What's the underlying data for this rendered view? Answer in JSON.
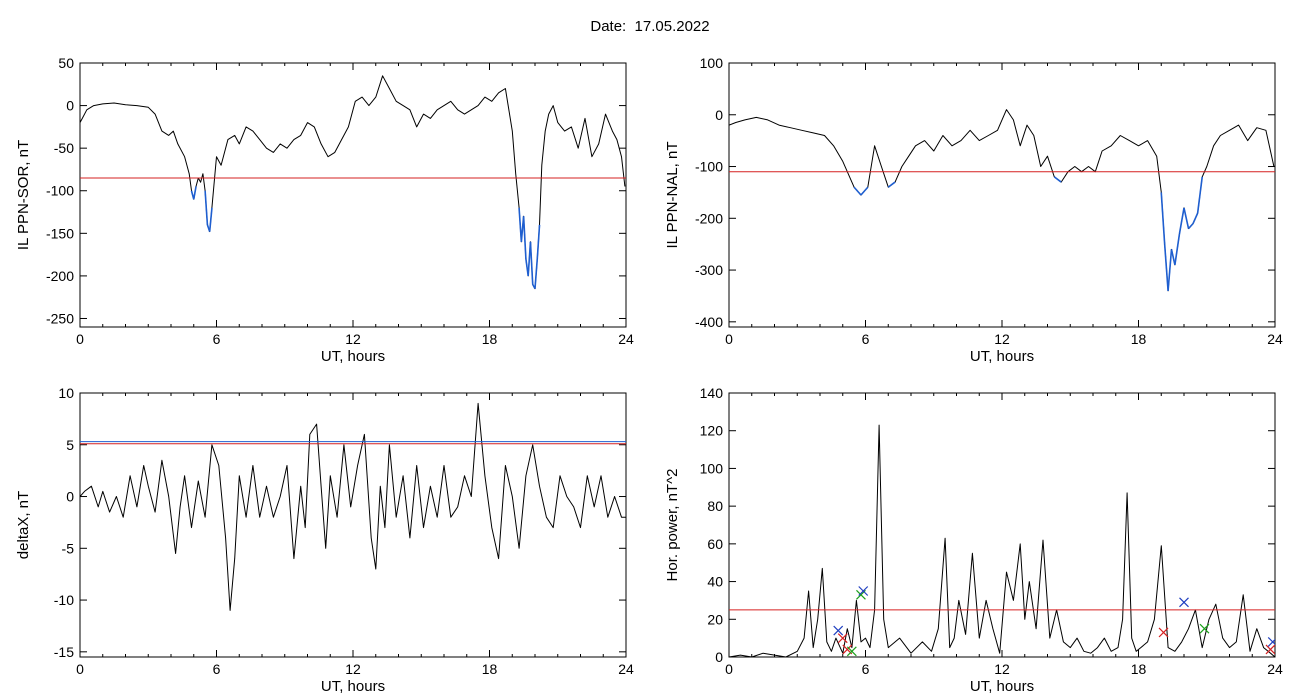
{
  "title": "Date:  17.05.2022",
  "chart_data": [
    {
      "type": "line",
      "xlabel": "UT, hours",
      "ylabel": "IL PPN-SOR, nT",
      "xlim": [
        0,
        24
      ],
      "ylim": [
        -260,
        50
      ],
      "xticks": [
        0,
        6,
        12,
        18,
        24
      ],
      "yticks": [
        50,
        0,
        -50,
        -100,
        -150,
        -200,
        -250
      ],
      "threshold_lines": [
        {
          "value": -85,
          "color": "#d62020"
        }
      ],
      "below_threshold_color": "#1f5fd0",
      "series": [
        {
          "color": "#000000",
          "x": [
            0,
            0.1,
            0.3,
            0.6,
            1.0,
            1.5,
            2.0,
            2.5,
            3.0,
            3.3,
            3.6,
            3.9,
            4.1,
            4.3,
            4.6,
            4.8,
            4.9,
            5.0,
            5.1,
            5.2,
            5.3,
            5.4,
            5.5,
            5.6,
            5.7,
            5.8,
            6.0,
            6.2,
            6.5,
            6.8,
            7.0,
            7.3,
            7.6,
            7.9,
            8.2,
            8.5,
            8.8,
            9.1,
            9.4,
            9.7,
            10.0,
            10.3,
            10.6,
            10.9,
            11.2,
            11.5,
            11.8,
            12.1,
            12.4,
            12.7,
            13.0,
            13.3,
            13.6,
            13.9,
            14.2,
            14.5,
            14.8,
            15.1,
            15.4,
            15.7,
            16.0,
            16.3,
            16.6,
            16.9,
            17.2,
            17.5,
            17.8,
            18.1,
            18.4,
            18.7,
            19.0,
            19.15,
            19.3,
            19.4,
            19.5,
            19.6,
            19.7,
            19.8,
            19.9,
            20.0,
            20.1,
            20.2,
            20.3,
            20.45,
            20.6,
            20.8,
            21.0,
            21.3,
            21.6,
            21.9,
            22.2,
            22.5,
            22.8,
            23.1,
            23.4,
            23.6,
            23.8,
            23.95
          ],
          "values": [
            -20,
            -15,
            -5,
            0,
            2,
            3,
            1,
            0,
            -2,
            -10,
            -30,
            -35,
            -30,
            -45,
            -60,
            -80,
            -100,
            -110,
            -95,
            -85,
            -90,
            -80,
            -100,
            -140,
            -148,
            -120,
            -60,
            -70,
            -40,
            -35,
            -45,
            -25,
            -30,
            -40,
            -50,
            -55,
            -45,
            -50,
            -40,
            -35,
            -20,
            -25,
            -45,
            -60,
            -55,
            -40,
            -25,
            5,
            10,
            0,
            10,
            35,
            20,
            5,
            0,
            -5,
            -25,
            -10,
            -15,
            -5,
            0,
            5,
            -5,
            -10,
            -5,
            0,
            10,
            5,
            15,
            20,
            -30,
            -80,
            -120,
            -160,
            -130,
            -180,
            -200,
            -160,
            -210,
            -215,
            -180,
            -140,
            -70,
            -30,
            -10,
            0,
            -20,
            -30,
            -25,
            -50,
            -15,
            -60,
            -45,
            -10,
            -30,
            -40,
            -60,
            -95
          ]
        }
      ]
    },
    {
      "type": "line",
      "xlabel": "UT, hours",
      "ylabel": "IL PPN-NAL, nT",
      "xlim": [
        0,
        24
      ],
      "ylim": [
        -410,
        100
      ],
      "xticks": [
        0,
        6,
        12,
        18,
        24
      ],
      "yticks": [
        100,
        0,
        -100,
        -200,
        -300,
        -400
      ],
      "threshold_lines": [
        {
          "value": -110,
          "color": "#d62020"
        }
      ],
      "below_threshold_color": "#1f5fd0",
      "series": [
        {
          "color": "#000000",
          "x": [
            0,
            0.3,
            0.7,
            1.2,
            1.7,
            2.2,
            2.7,
            3.2,
            3.7,
            4.2,
            4.6,
            5.0,
            5.2,
            5.5,
            5.8,
            6.1,
            6.4,
            6.7,
            7.0,
            7.3,
            7.6,
            7.9,
            8.2,
            8.6,
            9.0,
            9.4,
            9.8,
            10.2,
            10.6,
            11.0,
            11.4,
            11.8,
            12.2,
            12.5,
            12.8,
            13.1,
            13.4,
            13.7,
            14.0,
            14.3,
            14.6,
            14.9,
            15.2,
            15.5,
            15.8,
            16.1,
            16.4,
            16.8,
            17.2,
            17.6,
            18.0,
            18.4,
            18.8,
            19.0,
            19.15,
            19.3,
            19.45,
            19.6,
            19.8,
            20.0,
            20.2,
            20.4,
            20.6,
            20.8,
            21.0,
            21.3,
            21.6,
            22.0,
            22.4,
            22.8,
            23.2,
            23.6,
            23.95
          ],
          "values": [
            -20,
            -15,
            -10,
            -5,
            -10,
            -20,
            -25,
            -30,
            -35,
            -40,
            -60,
            -90,
            -110,
            -140,
            -155,
            -140,
            -60,
            -100,
            -140,
            -130,
            -100,
            -80,
            -60,
            -50,
            -70,
            -40,
            -60,
            -50,
            -30,
            -50,
            -40,
            -30,
            10,
            -10,
            -60,
            -20,
            -40,
            -100,
            -80,
            -120,
            -130,
            -110,
            -100,
            -110,
            -100,
            -110,
            -70,
            -60,
            -40,
            -50,
            -60,
            -50,
            -80,
            -150,
            -250,
            -340,
            -260,
            -290,
            -230,
            -180,
            -220,
            -210,
            -190,
            -120,
            -100,
            -60,
            -40,
            -30,
            -20,
            -50,
            -25,
            -30,
            -100
          ]
        }
      ]
    },
    {
      "type": "line",
      "xlabel": "UT, hours",
      "ylabel": "deltaX, nT",
      "xlim": [
        0,
        24
      ],
      "ylim": [
        -15.5,
        10
      ],
      "xticks": [
        0,
        6,
        12,
        18,
        24
      ],
      "yticks": [
        10,
        5,
        0,
        -5,
        -10,
        -15
      ],
      "threshold_lines": [
        {
          "value": 5.3,
          "color": "#1f5fd0"
        },
        {
          "value": 5.1,
          "color": "#d62020"
        }
      ],
      "series": [
        {
          "color": "#000000",
          "x": [
            0,
            0.2,
            0.5,
            0.8,
            1.0,
            1.3,
            1.6,
            1.9,
            2.2,
            2.5,
            2.8,
            3.0,
            3.3,
            3.6,
            3.9,
            4.2,
            4.4,
            4.6,
            4.9,
            5.2,
            5.5,
            5.8,
            6.1,
            6.4,
            6.6,
            6.8,
            7.0,
            7.3,
            7.6,
            7.9,
            8.2,
            8.5,
            8.8,
            9.1,
            9.4,
            9.7,
            9.9,
            10.1,
            10.4,
            10.6,
            10.8,
            11.0,
            11.3,
            11.6,
            11.9,
            12.2,
            12.5,
            12.8,
            13.0,
            13.2,
            13.4,
            13.6,
            13.9,
            14.2,
            14.5,
            14.8,
            15.1,
            15.4,
            15.7,
            16.0,
            16.3,
            16.6,
            16.9,
            17.2,
            17.5,
            17.8,
            18.1,
            18.4,
            18.7,
            19.0,
            19.3,
            19.6,
            19.9,
            20.2,
            20.5,
            20.8,
            21.1,
            21.4,
            21.7,
            22.0,
            22.3,
            22.6,
            22.9,
            23.2,
            23.5,
            23.8,
            24.0
          ],
          "values": [
            0,
            0.5,
            1,
            -1,
            0.5,
            -1.5,
            0,
            -2,
            2,
            -1,
            3,
            1,
            -1.5,
            3.5,
            0,
            -5.5,
            -1,
            2,
            -3,
            1.5,
            -2,
            5,
            3,
            -4,
            -11,
            -6,
            2,
            -2,
            3,
            -2,
            1,
            -2,
            0,
            3,
            -6,
            1,
            -3,
            6,
            7,
            1,
            -5,
            2,
            -2,
            5,
            -1,
            3,
            6,
            -4,
            -7,
            1,
            -3,
            5,
            -2,
            2,
            -4,
            3,
            -3,
            1,
            -2,
            3,
            -2,
            -1,
            2,
            0,
            9,
            2,
            -3,
            -6,
            3,
            0,
            -5,
            2,
            5,
            1,
            -2,
            -3,
            2,
            0,
            -1,
            -3,
            2,
            -1,
            2,
            -2,
            0,
            -2,
            -2
          ]
        }
      ]
    },
    {
      "type": "line",
      "xlabel": "UT, hours",
      "ylabel": "Hor. power, nT^2",
      "xlim": [
        0,
        24
      ],
      "ylim": [
        0,
        140
      ],
      "xticks": [
        0,
        6,
        12,
        18,
        24
      ],
      "yticks": [
        140,
        120,
        100,
        80,
        60,
        40,
        20,
        0
      ],
      "threshold_lines": [
        {
          "value": 25,
          "color": "#d62020"
        }
      ],
      "series": [
        {
          "color": "#000000",
          "x": [
            0,
            0.5,
            1.0,
            1.5,
            2.0,
            2.5,
            3.0,
            3.3,
            3.5,
            3.7,
            3.9,
            4.1,
            4.3,
            4.5,
            4.7,
            5.0,
            5.2,
            5.4,
            5.6,
            5.8,
            6.0,
            6.2,
            6.4,
            6.6,
            6.8,
            7.0,
            7.5,
            8.0,
            8.5,
            8.9,
            9.2,
            9.5,
            9.7,
            9.9,
            10.1,
            10.4,
            10.7,
            11.0,
            11.3,
            11.6,
            11.9,
            12.2,
            12.5,
            12.8,
            13.0,
            13.2,
            13.5,
            13.8,
            14.1,
            14.4,
            14.7,
            15.0,
            15.3,
            15.6,
            15.9,
            16.2,
            16.5,
            16.8,
            17.1,
            17.3,
            17.5,
            17.7,
            17.9,
            18.1,
            18.4,
            18.7,
            19.0,
            19.3,
            19.6,
            19.9,
            20.2,
            20.5,
            20.8,
            21.1,
            21.4,
            21.7,
            22.0,
            22.3,
            22.6,
            22.9,
            23.2,
            23.5,
            23.8,
            24.0
          ],
          "values": [
            0,
            1,
            0,
            2,
            1,
            0,
            3,
            10,
            35,
            5,
            20,
            47,
            8,
            3,
            10,
            2,
            15,
            5,
            30,
            8,
            10,
            5,
            25,
            123,
            20,
            5,
            10,
            2,
            8,
            3,
            15,
            63,
            5,
            10,
            30,
            12,
            55,
            10,
            30,
            15,
            2,
            45,
            30,
            60,
            20,
            40,
            15,
            62,
            10,
            25,
            8,
            5,
            10,
            3,
            2,
            5,
            10,
            3,
            5,
            20,
            87,
            10,
            3,
            5,
            8,
            20,
            59,
            5,
            3,
            8,
            15,
            25,
            5,
            20,
            28,
            10,
            5,
            8,
            33,
            3,
            15,
            5,
            2,
            0
          ]
        }
      ],
      "markers": [
        {
          "x": 4.8,
          "y": 14,
          "color": "#1f3fc0"
        },
        {
          "x": 5.0,
          "y": 10,
          "color": "#d62020"
        },
        {
          "x": 5.2,
          "y": 4,
          "color": "#d62020"
        },
        {
          "x": 5.4,
          "y": 3,
          "color": "#1aa01a"
        },
        {
          "x": 5.8,
          "y": 33,
          "color": "#1aa01a"
        },
        {
          "x": 5.9,
          "y": 35,
          "color": "#1f3fc0"
        },
        {
          "x": 19.1,
          "y": 13,
          "color": "#d62020"
        },
        {
          "x": 20.0,
          "y": 29,
          "color": "#1f3fc0"
        },
        {
          "x": 20.9,
          "y": 15,
          "color": "#1aa01a"
        },
        {
          "x": 23.8,
          "y": 4,
          "color": "#d62020"
        },
        {
          "x": 23.9,
          "y": 8,
          "color": "#1f3fc0"
        }
      ]
    }
  ]
}
